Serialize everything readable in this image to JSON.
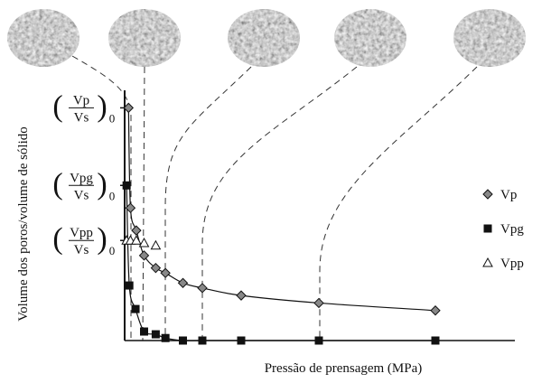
{
  "chart_data": {
    "type": "scatter",
    "xlabel": "Pressão de prensagem (MPa)",
    "ylabel": "Volume dos poros/volume de sólido",
    "xlim": [
      0,
      100
    ],
    "ylim": [
      0,
      100
    ],
    "yticks": [
      {
        "value": 93,
        "label": {
          "num": "Vp",
          "den": "Vs",
          "sub": "0"
        }
      },
      {
        "value": 62,
        "label": {
          "num": "Vpg",
          "den": "Vs",
          "sub": "0"
        }
      },
      {
        "value": 40,
        "label": {
          "num": "Vpp",
          "den": "Vs",
          "sub": "0"
        }
      }
    ],
    "legend": "right",
    "series": [
      {
        "name": "Vp",
        "marker": "diamond",
        "color": "#888888",
        "x": [
          1,
          1.5,
          3,
          5,
          8,
          10.5,
          15,
          20,
          30,
          50,
          80
        ],
        "values": [
          93,
          53,
          44,
          34,
          29,
          27,
          23,
          21,
          18,
          15,
          12
        ]
      },
      {
        "name": "Vpg",
        "marker": "square",
        "color": "#111111",
        "x": [
          0.5,
          1.2,
          2.8,
          5,
          8,
          10.5,
          15,
          20,
          30,
          50,
          80
        ],
        "values": [
          62,
          22,
          12.6,
          3.6,
          2.5,
          1,
          0,
          0,
          0,
          0,
          0
        ]
      },
      {
        "name": "Vpp",
        "marker": "triangle",
        "color": "#ffffff",
        "x": [
          0.5,
          1.5,
          3,
          5,
          8
        ],
        "values": [
          40,
          40,
          40,
          39,
          38
        ]
      }
    ]
  }
}
